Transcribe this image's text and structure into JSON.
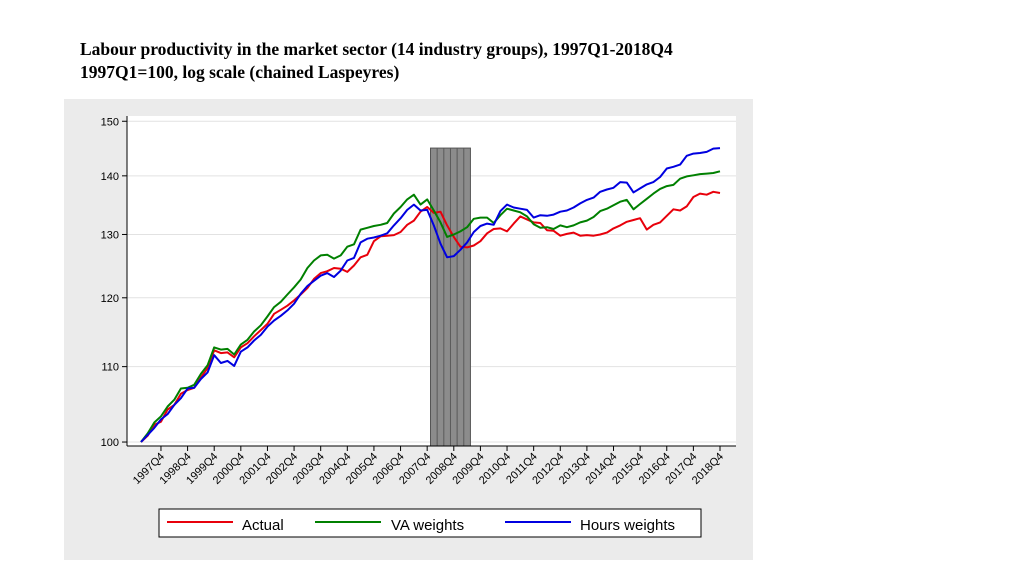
{
  "title": "Labour productivity in the market sector (14 industry groups), 1997Q1-2018Q4",
  "subtitle": "1997Q1=100, log scale (chained Laspeyres)",
  "colors": {
    "panel": "#ebebeb",
    "plot": "#ffffff",
    "recession": "#8c8c8c",
    "actual": "#e8000b",
    "va": "#008000",
    "hours": "#0000e0"
  },
  "chart_data": {
    "type": "line",
    "title": "Labour productivity in the market sector (14 industry groups), 1997Q1-2018Q4",
    "subtitle": "1997Q1=100, log scale (chained Laspeyres)",
    "xlabel": "",
    "ylabel": "",
    "y_scale": "log",
    "ylim": [
      99.5,
      151
    ],
    "y_ticks": [
      100,
      110,
      120,
      130,
      140,
      150
    ],
    "x_tick_labels": [
      "1997Q4",
      "1998Q4",
      "1999Q4",
      "2000Q4",
      "2001Q4",
      "2002Q4",
      "2003Q4",
      "2004Q4",
      "2005Q4",
      "2006Q4",
      "2007Q4",
      "2008Q4",
      "2009Q4",
      "2010Q4",
      "2011Q4",
      "2012Q4",
      "2013Q4",
      "2014Q4",
      "2015Q4",
      "2016Q4",
      "2017Q4",
      "2018Q4"
    ],
    "shaded_period": [
      "2008Q1",
      "2009Q2"
    ],
    "grid": true,
    "legend_position": "bottom",
    "series": [
      {
        "name": "Actual",
        "color": "#e8000b",
        "values": [
          100.0,
          100.8,
          102.2,
          102.6,
          104.2,
          104.8,
          106.3,
          106.8,
          107.1,
          108.5,
          109.8,
          112.3,
          111.9,
          112.0,
          111.3,
          112.7,
          113.3,
          114.3,
          115.2,
          116.1,
          117.6,
          118.2,
          118.8,
          119.6,
          120.5,
          121.5,
          122.9,
          123.8,
          124.1,
          124.6,
          124.5,
          124.0,
          125.0,
          126.3,
          126.7,
          128.9,
          129.7,
          129.8,
          129.9,
          130.4,
          131.6,
          132.3,
          133.8,
          134.6,
          133.6,
          133.8,
          131.5,
          129.6,
          128.0,
          127.9,
          128.2,
          128.9,
          130.2,
          130.9,
          131.0,
          130.5,
          131.8,
          133.0,
          132.5,
          132.0,
          131.9,
          130.7,
          130.6,
          129.8,
          130.1,
          130.3,
          129.8,
          129.9,
          129.8,
          130.0,
          130.3,
          131.0,
          131.5,
          132.1,
          132.4,
          132.7,
          130.8,
          131.6,
          132.0,
          133.1,
          134.2,
          134.0,
          134.7,
          136.3,
          136.9,
          136.7,
          137.2,
          137.0
        ]
      },
      {
        "name": "VA weights",
        "color": "#008000",
        "values": [
          100.0,
          101.1,
          102.5,
          103.3,
          104.6,
          105.5,
          107.0,
          107.1,
          107.5,
          109.0,
          110.2,
          112.7,
          112.4,
          112.5,
          111.7,
          113.1,
          113.8,
          115.0,
          115.9,
          117.2,
          118.6,
          119.4,
          120.5,
          121.6,
          122.8,
          124.6,
          125.8,
          126.6,
          126.7,
          126.1,
          126.6,
          128.0,
          128.4,
          130.8,
          131.1,
          131.4,
          131.6,
          131.9,
          133.5,
          134.6,
          135.9,
          136.7,
          135.0,
          135.9,
          134.0,
          132.0,
          129.6,
          130.0,
          130.5,
          131.2,
          132.6,
          132.8,
          132.8,
          131.9,
          133.2,
          134.3,
          134.0,
          133.7,
          133.0,
          131.7,
          131.1,
          131.2,
          130.9,
          131.5,
          131.2,
          131.5,
          132.0,
          132.3,
          132.9,
          133.9,
          134.3,
          134.9,
          135.5,
          135.8,
          134.2,
          135.1,
          136.0,
          136.9,
          137.7,
          138.2,
          138.4,
          139.5,
          139.9,
          140.1,
          140.3,
          140.4,
          140.5,
          140.8
        ]
      },
      {
        "name": "Hours weights",
        "color": "#0000e0",
        "values": [
          100.0,
          100.9,
          101.8,
          102.9,
          103.6,
          104.8,
          105.7,
          107.0,
          107.1,
          108.3,
          109.2,
          111.6,
          110.5,
          110.8,
          110.1,
          112.1,
          112.7,
          113.7,
          114.5,
          115.7,
          116.6,
          117.3,
          118.1,
          119.1,
          120.6,
          121.8,
          122.6,
          123.4,
          123.8,
          123.2,
          124.2,
          125.8,
          126.2,
          128.7,
          129.3,
          129.5,
          129.8,
          130.2,
          131.5,
          132.7,
          134.1,
          135.0,
          134.0,
          134.1,
          131.5,
          128.5,
          126.3,
          126.5,
          127.5,
          128.7,
          130.4,
          131.4,
          131.8,
          131.6,
          133.9,
          135.0,
          134.5,
          134.3,
          134.1,
          132.8,
          133.2,
          133.1,
          133.3,
          133.8,
          134.0,
          134.5,
          135.2,
          135.8,
          136.2,
          137.2,
          137.6,
          137.9,
          138.9,
          138.8,
          137.1,
          137.8,
          138.5,
          138.9,
          139.8,
          141.3,
          141.6,
          142.0,
          143.6,
          144.0,
          144.1,
          144.3,
          144.9,
          145.0
        ]
      }
    ]
  },
  "legend": {
    "actual": "Actual",
    "va": "VA weights",
    "hours": "Hours weights"
  }
}
